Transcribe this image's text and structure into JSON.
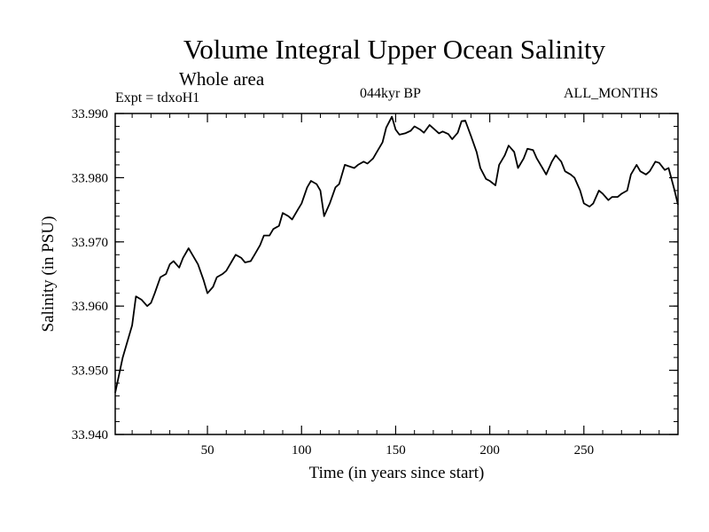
{
  "chart_data": {
    "type": "line",
    "title": "Volume Integral Upper Ocean Salinity",
    "subtitle": "Whole area",
    "annotations": {
      "experiment": "Expt = tdxoH1",
      "period": "044kyr BP",
      "months": "ALL_MONTHS"
    },
    "xlabel": "Time (in years since start)",
    "ylabel": "Salinity (in PSU)",
    "xlim": [
      1,
      300
    ],
    "ylim": [
      33.94,
      33.99
    ],
    "x_ticks": [
      50,
      100,
      150,
      200,
      250
    ],
    "y_ticks": [
      33.94,
      33.95,
      33.96,
      33.97,
      33.98,
      33.99
    ],
    "y_tick_labels": [
      "33.940",
      "33.950",
      "33.960",
      "33.970",
      "33.980",
      "33.990"
    ],
    "series": [
      {
        "name": "salinity",
        "color": "#000000",
        "x": [
          1,
          5,
          10,
          12,
          15,
          18,
          20,
          22,
          25,
          28,
          30,
          32,
          35,
          37,
          40,
          42,
          45,
          48,
          50,
          53,
          55,
          58,
          60,
          63,
          65,
          68,
          70,
          73,
          75,
          78,
          80,
          83,
          85,
          88,
          90,
          93,
          95,
          98,
          100,
          103,
          105,
          108,
          110,
          112,
          115,
          118,
          120,
          123,
          125,
          128,
          130,
          133,
          135,
          138,
          140,
          143,
          145,
          148,
          150,
          152,
          155,
          158,
          160,
          163,
          165,
          168,
          170,
          173,
          175,
          178,
          180,
          183,
          185,
          187,
          190,
          193,
          195,
          198,
          200,
          203,
          205,
          208,
          210,
          213,
          215,
          218,
          220,
          223,
          225,
          228,
          230,
          233,
          235,
          238,
          240,
          243,
          245,
          248,
          250,
          253,
          255,
          258,
          260,
          263,
          265,
          268,
          270,
          273,
          275,
          278,
          280,
          283,
          285,
          288,
          290,
          293,
          295,
          298,
          300
        ],
        "values": [
          33.9465,
          33.952,
          33.957,
          33.9615,
          33.961,
          33.96,
          33.9605,
          33.962,
          33.9645,
          33.965,
          33.9665,
          33.967,
          33.966,
          33.9675,
          33.969,
          33.968,
          33.9665,
          33.964,
          33.962,
          33.963,
          33.9645,
          33.965,
          33.9655,
          33.967,
          33.968,
          33.9675,
          33.9668,
          33.967,
          33.968,
          33.9695,
          33.971,
          33.971,
          33.972,
          33.9725,
          33.9745,
          33.974,
          33.9735,
          33.975,
          33.976,
          33.9785,
          33.9795,
          33.979,
          33.978,
          33.974,
          33.976,
          33.9785,
          33.979,
          33.982,
          33.9818,
          33.9815,
          33.982,
          33.9825,
          33.9822,
          33.983,
          33.984,
          33.9855,
          33.9878,
          33.9895,
          33.9875,
          33.9867,
          33.9869,
          33.9873,
          33.988,
          33.9875,
          33.987,
          33.9882,
          33.9877,
          33.9869,
          33.9872,
          33.9868,
          33.986,
          33.987,
          33.9888,
          33.9889,
          33.9865,
          33.984,
          33.9815,
          33.9798,
          33.9795,
          33.9788,
          33.982,
          33.9835,
          33.985,
          33.984,
          33.9815,
          33.983,
          33.9845,
          33.9843,
          33.983,
          33.9815,
          33.9805,
          33.9825,
          33.9835,
          33.9825,
          33.981,
          33.9805,
          33.98,
          33.978,
          33.976,
          33.9755,
          33.976,
          33.978,
          33.9775,
          33.9765,
          33.977,
          33.977,
          33.9775,
          33.978,
          33.9805,
          33.982,
          33.981,
          33.9805,
          33.981,
          33.9825,
          33.9823,
          33.9812,
          33.9815,
          33.9782,
          33.9758
        ]
      }
    ]
  }
}
